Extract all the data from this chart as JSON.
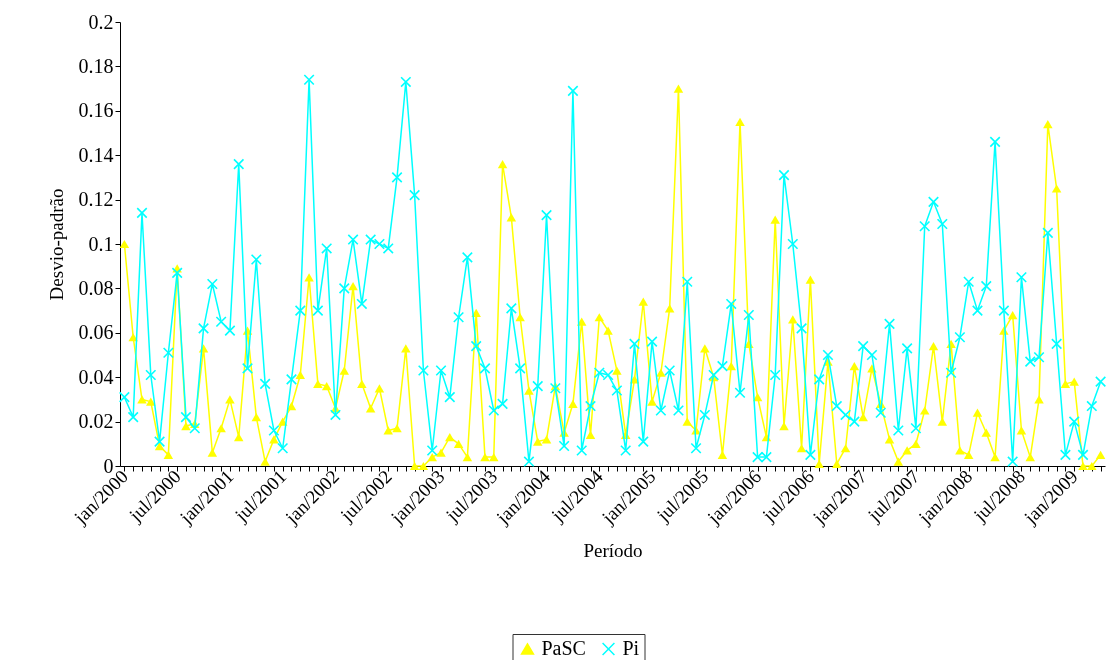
{
  "chart_data": {
    "type": "line",
    "xlabel": "Período",
    "ylabel": "Desvio-padrão",
    "categories": [
      "jan/2000",
      null,
      null,
      null,
      null,
      null,
      "jul/2000",
      null,
      null,
      null,
      null,
      null,
      "jan/2001",
      null,
      null,
      null,
      null,
      null,
      "jul/2001",
      null,
      null,
      null,
      null,
      null,
      "jan/2002",
      null,
      null,
      null,
      null,
      null,
      "jul/2002",
      null,
      null,
      null,
      null,
      null,
      "jan/2003",
      null,
      null,
      null,
      null,
      null,
      "jul/2003",
      null,
      null,
      null,
      null,
      null,
      "jan/2004",
      null,
      null,
      null,
      null,
      null,
      "jul/2004",
      null,
      null,
      null,
      null,
      null,
      "jan/2005",
      null,
      null,
      null,
      null,
      null,
      "jul/2005",
      null,
      null,
      null,
      null,
      null,
      "jan/2006",
      null,
      null,
      null,
      null,
      null,
      "jul/2006",
      null,
      null,
      null,
      null,
      null,
      "jan/2007",
      null,
      null,
      null,
      null,
      null,
      "jul/2007",
      null,
      null,
      null,
      null,
      null,
      "jan/2008",
      null,
      null,
      null,
      null,
      null,
      "jul/2008",
      null,
      null,
      null,
      null,
      null,
      "jan/2009",
      null,
      null,
      null
    ],
    "series": [
      {
        "name": "PaSC",
        "color": "#ffff00",
        "marker": "triangle",
        "values": [
          0.1,
          0.058,
          0.03,
          0.029,
          0.009,
          0.005,
          0.089,
          0.018,
          0.019,
          0.053,
          0.006,
          0.017,
          0.03,
          0.013,
          0.061,
          0.022,
          0.002,
          0.012,
          0.02,
          0.027,
          0.041,
          0.085,
          0.037,
          0.036,
          0.026,
          0.043,
          0.081,
          0.037,
          0.026,
          0.035,
          0.016,
          0.017,
          0.053,
          0.0,
          0.0,
          0.004,
          0.006,
          0.013,
          0.01,
          0.004,
          0.069,
          0.004,
          0.004,
          0.136,
          0.112,
          0.067,
          0.034,
          0.011,
          0.012,
          0.036,
          0.015,
          0.028,
          0.065,
          0.014,
          0.067,
          0.061,
          0.043,
          0.014,
          0.039,
          0.074,
          0.029,
          0.042,
          0.071,
          0.17,
          0.02,
          0.016,
          0.053,
          0.04,
          0.005,
          0.045,
          0.155,
          0.055,
          0.031,
          0.013,
          0.111,
          0.018,
          0.066,
          0.008,
          0.084,
          0.001,
          0.047,
          0.001,
          0.008,
          0.045,
          0.022,
          0.044,
          0.028,
          0.012,
          0.002,
          0.007,
          0.01,
          0.025,
          0.054,
          0.02,
          0.055,
          0.007,
          0.005,
          0.024,
          0.015,
          0.004,
          0.061,
          0.068,
          0.016,
          0.004,
          0.03,
          0.154,
          0.125,
          0.037,
          0.038,
          0.0,
          0.0,
          0.005
        ]
      },
      {
        "name": "Pi",
        "color": "#00ffff",
        "marker": "cross",
        "values": [
          0.031,
          0.022,
          0.114,
          0.041,
          0.011,
          0.051,
          0.087,
          0.022,
          0.017,
          0.062,
          0.082,
          0.065,
          0.061,
          0.136,
          0.044,
          0.093,
          0.037,
          0.016,
          0.008,
          0.039,
          0.07,
          0.174,
          0.07,
          0.098,
          0.023,
          0.08,
          0.102,
          0.073,
          0.102,
          0.1,
          0.098,
          0.13,
          0.173,
          0.122,
          0.043,
          0.007,
          0.043,
          0.031,
          0.067,
          0.094,
          0.054,
          0.044,
          0.025,
          0.028,
          0.071,
          0.044,
          0.002,
          0.036,
          0.113,
          0.035,
          0.009,
          0.169,
          0.007,
          0.027,
          0.042,
          0.041,
          0.034,
          0.007,
          0.055,
          0.011,
          0.056,
          0.025,
          0.043,
          0.025,
          0.083,
          0.008,
          0.023,
          0.041,
          0.045,
          0.073,
          0.033,
          0.068,
          0.004,
          0.004,
          0.041,
          0.131,
          0.1,
          0.062,
          0.005,
          0.039,
          0.05,
          0.027,
          0.023,
          0.02,
          0.054,
          0.05,
          0.024,
          0.064,
          0.016,
          0.053,
          0.017,
          0.108,
          0.119,
          0.109,
          0.042,
          0.058,
          0.083,
          0.07,
          0.081,
          0.146,
          0.07,
          0.002,
          0.085,
          0.047,
          0.049,
          0.105,
          0.055,
          0.005,
          0.02,
          0.005,
          0.027,
          0.038
        ]
      }
    ],
    "ylim": [
      0,
      0.2
    ],
    "yticks": [
      0,
      0.02,
      0.04,
      0.06,
      0.08,
      0.1,
      0.12,
      0.14,
      0.16,
      0.18,
      0.2
    ],
    "grid": false,
    "legend": "bottom"
  }
}
